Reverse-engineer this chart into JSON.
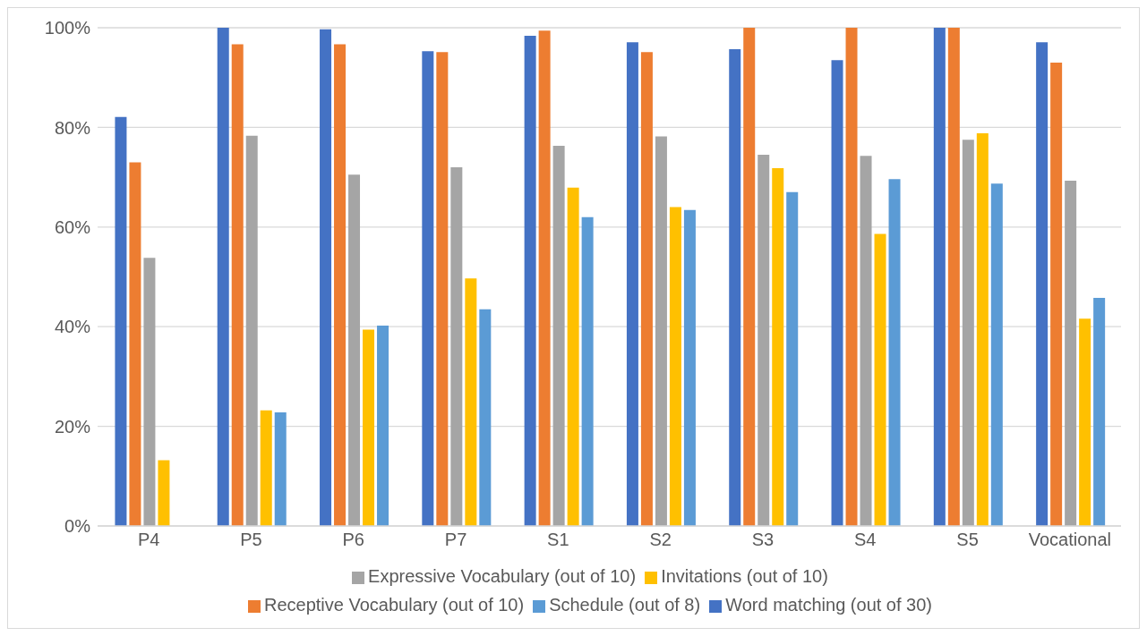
{
  "chart_data": {
    "type": "bar",
    "categories": [
      "P4",
      "P5",
      "P6",
      "P7",
      "S1",
      "S2",
      "S3",
      "S4",
      "S5",
      "Vocational"
    ],
    "series": [
      {
        "name": "Word matching (out of 30)",
        "color": "#4472c4",
        "values": [
          82.1,
          100,
          99.7,
          95.3,
          98.4,
          97.1,
          95.7,
          93.5,
          100,
          97.1
        ]
      },
      {
        "name": "Receptive Vocabulary (out of 10)",
        "color": "#ed7d31",
        "values": [
          73.0,
          96.7,
          96.7,
          95.1,
          99.4,
          95.1,
          100,
          100,
          100,
          93.0
        ]
      },
      {
        "name": "Expressive Vocabulary (out of 10)",
        "color": "#a5a5a5",
        "values": [
          53.8,
          78.3,
          70.5,
          72.0,
          76.3,
          78.2,
          74.5,
          74.3,
          77.5,
          69.3
        ]
      },
      {
        "name": "Invitations (out of 10)",
        "color": "#ffc000",
        "values": [
          13.2,
          23.2,
          39.4,
          49.7,
          67.9,
          64.0,
          71.8,
          58.6,
          78.8,
          41.6
        ]
      },
      {
        "name": "Schedule (out of 8)",
        "color": "#5b9bd5",
        "values": [
          null,
          22.8,
          40.2,
          43.5,
          62.0,
          63.4,
          67.0,
          69.6,
          68.7,
          45.8
        ]
      }
    ],
    "ylim": [
      0,
      100
    ],
    "yticks": [
      {
        "value": 0,
        "label": "0%"
      },
      {
        "value": 20,
        "label": "20%"
      },
      {
        "value": 40,
        "label": "40%"
      },
      {
        "value": 60,
        "label": "60%"
      },
      {
        "value": 80,
        "label": "80%"
      },
      {
        "value": 100,
        "label": "100%"
      }
    ],
    "grid": "y",
    "legend": "bottom"
  }
}
